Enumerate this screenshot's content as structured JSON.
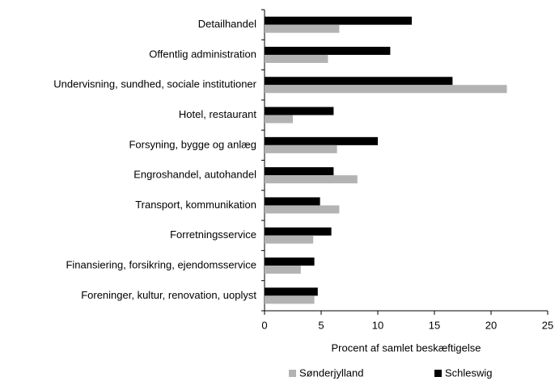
{
  "chart_data": {
    "type": "barh",
    "xlabel": "Procent af samlet beskæftigelse",
    "categories": [
      "Detailhandel",
      "Offentlig administration",
      "Undervisning, sundhed, sociale institutioner",
      "Hotel, restaurant",
      "Forsyning, bygge og anlæg",
      "Engroshandel, autohandel",
      "Transport, kommunikation",
      "Forretningsservice",
      "Finansiering, forsikring, ejendomsservice",
      "Foreninger, kultur, renovation, uoplyst"
    ],
    "series": [
      {
        "name": "Sønderjylland",
        "color": "#b3b3b3",
        "values": [
          6.6,
          5.6,
          21.4,
          2.5,
          6.4,
          8.2,
          6.6,
          4.3,
          3.2,
          4.4
        ]
      },
      {
        "name": "Schleswig",
        "color": "#000000",
        "values": [
          13.0,
          11.1,
          16.6,
          6.1,
          10.0,
          6.1,
          4.9,
          5.9,
          4.4,
          4.7
        ]
      }
    ],
    "xlim": [
      0,
      25
    ],
    "xticks": [
      0,
      5,
      10,
      15,
      20,
      25
    ],
    "legend": "bottom"
  }
}
